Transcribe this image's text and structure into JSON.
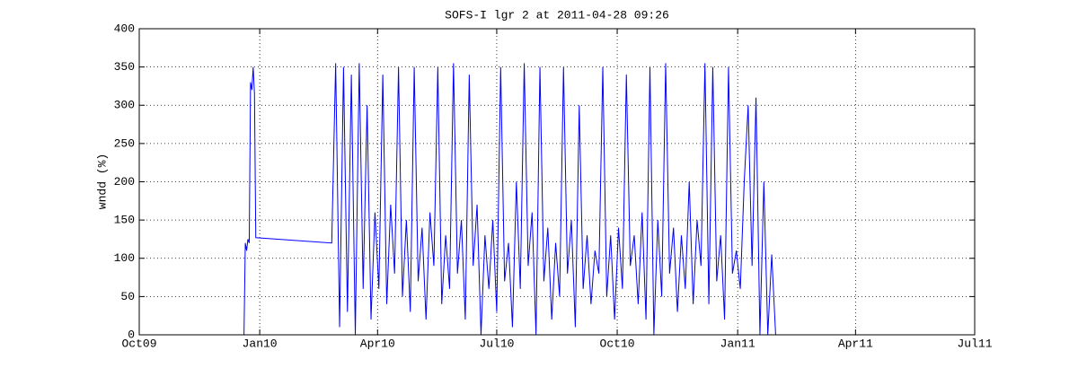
{
  "chart_data": {
    "type": "line",
    "title": "SOFS-I lgr 2 at 2011-04-28 09:26",
    "ylabel": "wndd (%)",
    "xlim": [
      "2009-10-01",
      "2011-07-01"
    ],
    "xticks": [
      {
        "value": "2009-10-01",
        "label": "Oct09"
      },
      {
        "value": "2010-01-01",
        "label": "Jan10"
      },
      {
        "value": "2010-04-01",
        "label": "Apr10"
      },
      {
        "value": "2010-07-01",
        "label": "Jul10"
      },
      {
        "value": "2010-10-01",
        "label": "Oct10"
      },
      {
        "value": "2011-01-01",
        "label": "Jan11"
      },
      {
        "value": "2011-04-01",
        "label": "Apr11"
      },
      {
        "value": "2011-07-01",
        "label": "Jul11"
      }
    ],
    "ylim": [
      0,
      400
    ],
    "yticks": [
      0,
      50,
      100,
      150,
      200,
      250,
      300,
      350,
      400
    ],
    "grid": true,
    "series": [
      {
        "name": "wndd",
        "color": "#0000ff",
        "x": [
          "2009-12-20",
          "2009-12-21",
          "2009-12-22",
          "2009-12-23",
          "2009-12-24",
          "2009-12-25",
          "2009-12-26",
          "2009-12-27",
          "2009-12-28",
          "2009-12-29",
          "2010-02-25",
          "2010-02-28",
          "2010-03-03",
          "2010-03-06",
          "2010-03-09",
          "2010-03-12",
          "2010-03-15",
          "2010-03-18",
          "2010-03-21",
          "2010-03-24",
          "2010-03-27",
          "2010-03-30",
          "2010-04-02",
          "2010-04-05",
          "2010-04-08",
          "2010-04-11",
          "2010-04-14",
          "2010-04-17",
          "2010-04-20",
          "2010-04-23",
          "2010-04-26",
          "2010-04-29",
          "2010-05-02",
          "2010-05-05",
          "2010-05-08",
          "2010-05-11",
          "2010-05-14",
          "2010-05-17",
          "2010-05-20",
          "2010-05-23",
          "2010-05-26",
          "2010-05-29",
          "2010-06-01",
          "2010-06-04",
          "2010-06-07",
          "2010-06-10",
          "2010-06-13",
          "2010-06-16",
          "2010-06-19",
          "2010-06-22",
          "2010-06-25",
          "2010-06-28",
          "2010-07-01",
          "2010-07-04",
          "2010-07-07",
          "2010-07-10",
          "2010-07-13",
          "2010-07-16",
          "2010-07-19",
          "2010-07-22",
          "2010-07-25",
          "2010-07-28",
          "2010-07-31",
          "2010-08-03",
          "2010-08-06",
          "2010-08-09",
          "2010-08-12",
          "2010-08-15",
          "2010-08-18",
          "2010-08-21",
          "2010-08-24",
          "2010-08-27",
          "2010-08-30",
          "2010-09-02",
          "2010-09-05",
          "2010-09-08",
          "2010-09-11",
          "2010-09-14",
          "2010-09-17",
          "2010-09-20",
          "2010-09-23",
          "2010-09-26",
          "2010-09-29",
          "2010-10-02",
          "2010-10-05",
          "2010-10-08",
          "2010-10-11",
          "2010-10-14",
          "2010-10-17",
          "2010-10-20",
          "2010-10-23",
          "2010-10-26",
          "2010-10-29",
          "2010-11-01",
          "2010-11-04",
          "2010-11-07",
          "2010-11-10",
          "2010-11-13",
          "2010-11-16",
          "2010-11-19",
          "2010-11-22",
          "2010-11-25",
          "2010-11-28",
          "2010-12-01",
          "2010-12-04",
          "2010-12-07",
          "2010-12-10",
          "2010-12-13",
          "2010-12-16",
          "2010-12-19",
          "2010-12-22",
          "2010-12-25",
          "2010-12-28",
          "2010-12-31",
          "2011-01-03",
          "2011-01-06",
          "2011-01-09",
          "2011-01-12",
          "2011-01-15",
          "2011-01-18",
          "2011-01-21",
          "2011-01-24",
          "2011-01-27",
          "2011-01-30",
          "2011-02-02"
        ],
        "values": [
          0,
          120,
          110,
          125,
          120,
          330,
          320,
          350,
          315,
          127,
          120,
          355,
          10,
          350,
          30,
          340,
          0,
          355,
          60,
          300,
          20,
          160,
          60,
          340,
          40,
          170,
          80,
          350,
          50,
          150,
          30,
          350,
          70,
          140,
          20,
          160,
          90,
          350,
          40,
          130,
          60,
          355,
          80,
          150,
          20,
          340,
          90,
          170,
          0,
          130,
          60,
          150,
          30,
          350,
          70,
          120,
          10,
          200,
          60,
          355,
          90,
          160,
          0,
          350,
          70,
          140,
          20,
          120,
          50,
          350,
          80,
          150,
          10,
          300,
          60,
          130,
          40,
          110,
          80,
          350,
          50,
          130,
          20,
          140,
          60,
          340,
          90,
          130,
          40,
          160,
          20,
          350,
          0,
          150,
          50,
          355,
          80,
          140,
          30,
          130,
          60,
          200,
          40,
          150,
          90,
          355,
          40,
          350,
          70,
          130,
          20,
          350,
          80,
          110,
          60,
          200,
          300,
          90,
          310,
          0,
          200,
          0,
          105,
          0,
          0
        ]
      }
    ]
  }
}
